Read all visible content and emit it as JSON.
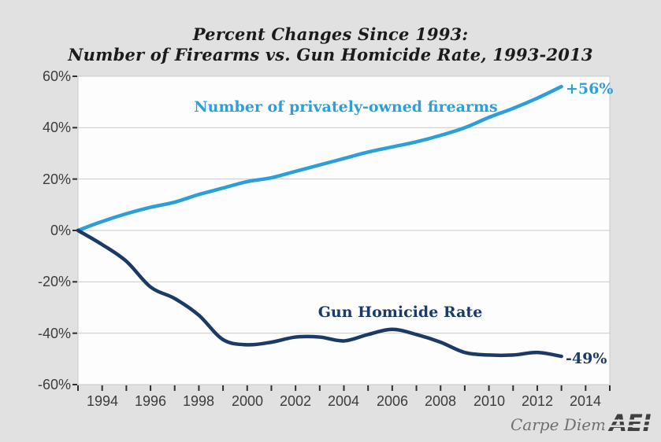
{
  "title": {
    "line1": "Percent Changes Since 1993:",
    "line2": "Number of Firearms vs. Gun Homicide Rate, 1993-2013"
  },
  "footer": {
    "credit": "Carpe Diem",
    "logo_text": "AEI"
  },
  "colors": {
    "background": "#e1e1e1",
    "plot_background": "#fdfdfd",
    "gridline": "#c9c9c9",
    "axis_tick": "#2f2f2f",
    "firearms_line": "#2d9fd8",
    "homicide_line": "#1b3a66"
  },
  "chart_data": {
    "type": "line",
    "title": "Percent Changes Since 1993: Number of Firearms vs. Gun Homicide Rate, 1993-2013",
    "xlabel": "",
    "ylabel": "",
    "xlim": [
      1993,
      2015
    ],
    "ylim": [
      -60,
      60
    ],
    "grid": true,
    "legend_position": "inline-labels",
    "x": [
      1993,
      1994,
      1995,
      1996,
      1997,
      1998,
      1999,
      2000,
      2001,
      2002,
      2003,
      2004,
      2005,
      2006,
      2007,
      2008,
      2009,
      2010,
      2011,
      2012,
      2013
    ],
    "series": [
      {
        "name": "Number of privately-owned firearms",
        "end_label": "+56%",
        "color": "#2d9fd8",
        "values": [
          0,
          3.5,
          6.5,
          9,
          11,
          14,
          16.5,
          19,
          20.5,
          23,
          25.5,
          28,
          30.5,
          32.5,
          34.5,
          37,
          40,
          44,
          47.5,
          51.5,
          56
        ]
      },
      {
        "name": "Gun Homicide Rate",
        "end_label": "-49%",
        "color": "#1b3a66",
        "values": [
          0,
          -5.5,
          -12,
          -22,
          -26.5,
          -33,
          -42.5,
          -44.5,
          -43.5,
          -41.5,
          -41.5,
          -43,
          -40.5,
          -38.5,
          -40.5,
          -43.5,
          -47.5,
          -48.5,
          -48.5,
          -47.5,
          -49
        ]
      }
    ],
    "y_tick_labels": [
      "60%",
      "40%",
      "20%",
      "0%",
      "-20%",
      "-40%",
      "-60%"
    ],
    "x_tick_labels": [
      "1994",
      "1996",
      "1998",
      "2000",
      "2002",
      "2004",
      "2006",
      "2008",
      "2010",
      "2012",
      "2014"
    ]
  }
}
